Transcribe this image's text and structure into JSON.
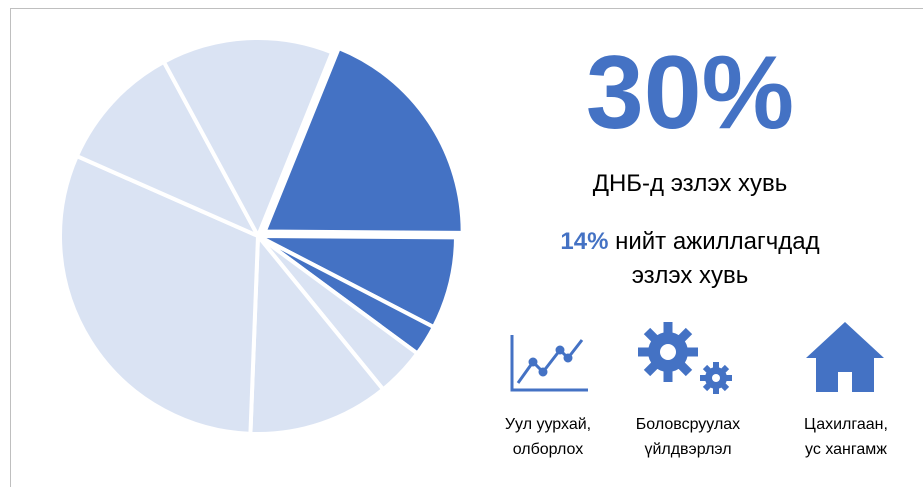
{
  "chart_data": {
    "type": "pie",
    "values": [
      19,
      7.5,
      2.5,
      4,
      11.5,
      31,
      10.5,
      14
    ],
    "colors": [
      "#4472c4",
      "#4472c4",
      "#4472c4",
      "#dae3f3",
      "#dae3f3",
      "#dae3f3",
      "#dae3f3",
      "#dae3f3"
    ]
  },
  "headline": {
    "value": "30%",
    "caption": "ДНБ-д эзлэх хувь"
  },
  "stat": {
    "value": "14%",
    "text": "нийт ажиллагчдад",
    "text2": "эзлэх хувь"
  },
  "items": [
    {
      "label": "Уул уурхай,\nолборлох"
    },
    {
      "label": "Боловсруулах\nүйлдвэрлэл"
    },
    {
      "label": "Цахилгаан,\nус хангамж"
    }
  ]
}
